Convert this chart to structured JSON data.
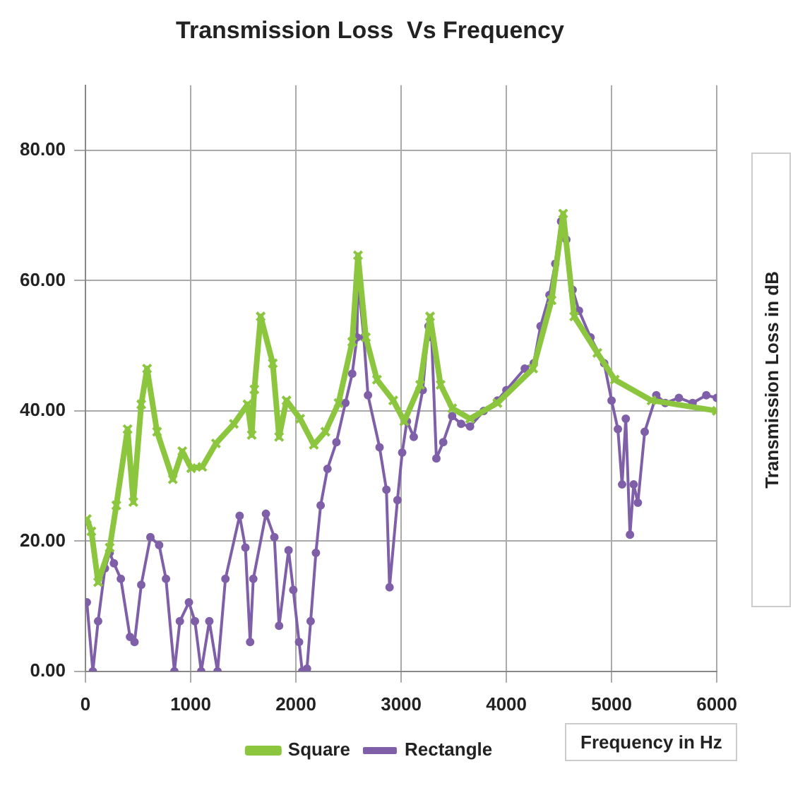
{
  "chart_data": {
    "type": "line",
    "title": "Transmission Loss  Vs Frequency",
    "xlabel": "Frequency in Hz",
    "ylabel": "Transmission Loss  in dB",
    "xlim": [
      0,
      6000
    ],
    "xticks": [
      0,
      1000,
      2000,
      3000,
      4000,
      5000,
      6000
    ],
    "ylim": [
      0,
      90
    ],
    "yticks": [
      {
        "value": 0,
        "label": "0.00"
      },
      {
        "value": 20,
        "label": "20.00"
      },
      {
        "value": 40,
        "label": "40.00"
      },
      {
        "value": 60,
        "label": "60.00"
      },
      {
        "value": 80,
        "label": "80.00"
      }
    ],
    "grid": true,
    "legend": "bottom",
    "line_style": "solid",
    "series": [
      {
        "name": "Square",
        "color": "#8cc63f",
        "marker": "cross",
        "x": [
          13,
          56,
          120,
          230,
          293,
          400,
          455,
          530,
          585,
          680,
          830,
          920,
          1005,
          1110,
          1240,
          1410,
          1540,
          1580,
          1605,
          1665,
          1780,
          1840,
          1910,
          2040,
          2170,
          2280,
          2405,
          2535,
          2590,
          2665,
          2770,
          2925,
          3030,
          3180,
          3275,
          3375,
          3485,
          3655,
          3915,
          4255,
          4430,
          4540,
          4645,
          4865,
          5030,
          5380,
          6000
        ],
        "values": [
          23.4,
          21.5,
          13.7,
          19,
          25.5,
          37.2,
          26,
          41,
          46.5,
          36.8,
          29.5,
          33.8,
          31.2,
          31.4,
          35,
          38,
          41,
          36.3,
          43.3,
          54.5,
          47.3,
          36,
          41.6,
          38.8,
          34.8,
          36.8,
          41.2,
          50.6,
          63.9,
          51.3,
          44.8,
          41.6,
          38.4,
          44,
          54.5,
          44,
          40.4,
          38.8,
          41.2,
          46.5,
          57,
          70.3,
          54.5,
          48.9,
          44.8,
          41.6,
          40
        ]
      },
      {
        "name": "Rectangle",
        "color": "#7f5fa8",
        "marker": "circle",
        "x": [
          13,
          70,
          120,
          185,
          230,
          270,
          336,
          423,
          466,
          530,
          617,
          700,
          765,
          845,
          897,
          983,
          1040,
          1100,
          1177,
          1255,
          1330,
          1465,
          1520,
          1565,
          1595,
          1715,
          1795,
          1840,
          1930,
          1975,
          2030,
          2060,
          2105,
          2140,
          2190,
          2235,
          2300,
          2385,
          2470,
          2535,
          2580,
          2590,
          2645,
          2685,
          2795,
          2860,
          2890,
          2965,
          3010,
          3055,
          3120,
          3205,
          3260,
          3290,
          3335,
          3400,
          3485,
          3570,
          3655,
          3785,
          3915,
          4000,
          4175,
          4260,
          4325,
          4410,
          4465,
          4520,
          4570,
          4630,
          4690,
          4800,
          4930,
          5000,
          5060,
          5100,
          5135,
          5175,
          5210,
          5250,
          5315,
          5425,
          5510,
          5640,
          5770,
          5900,
          6000
        ],
        "values": [
          10.6,
          0,
          7.7,
          15.8,
          18.2,
          16.6,
          14.2,
          5.3,
          4.5,
          13.3,
          20.6,
          19.4,
          14.2,
          0,
          7.7,
          10.6,
          7.7,
          0,
          7.7,
          0,
          14.2,
          23.9,
          19,
          4.5,
          14.2,
          24.2,
          20.6,
          7,
          18.6,
          12.5,
          4.5,
          0,
          0.4,
          7.7,
          18.2,
          25.5,
          31.1,
          35.2,
          41.2,
          45.7,
          51.3,
          60.3,
          51.3,
          42.4,
          34.4,
          27.9,
          12.9,
          26.3,
          33.6,
          38.4,
          36,
          43.2,
          53,
          51.3,
          32.7,
          35.2,
          39.2,
          38,
          37.6,
          40,
          41.6,
          43.2,
          46.5,
          47.3,
          53,
          57.8,
          62.6,
          69.1,
          66.3,
          58.6,
          55.4,
          51.3,
          47.3,
          41.6,
          37.2,
          28.7,
          38.8,
          21,
          28.7,
          25.9,
          36.8,
          42.4,
          41.2,
          42,
          41.2,
          42.4,
          42
        ]
      }
    ]
  }
}
